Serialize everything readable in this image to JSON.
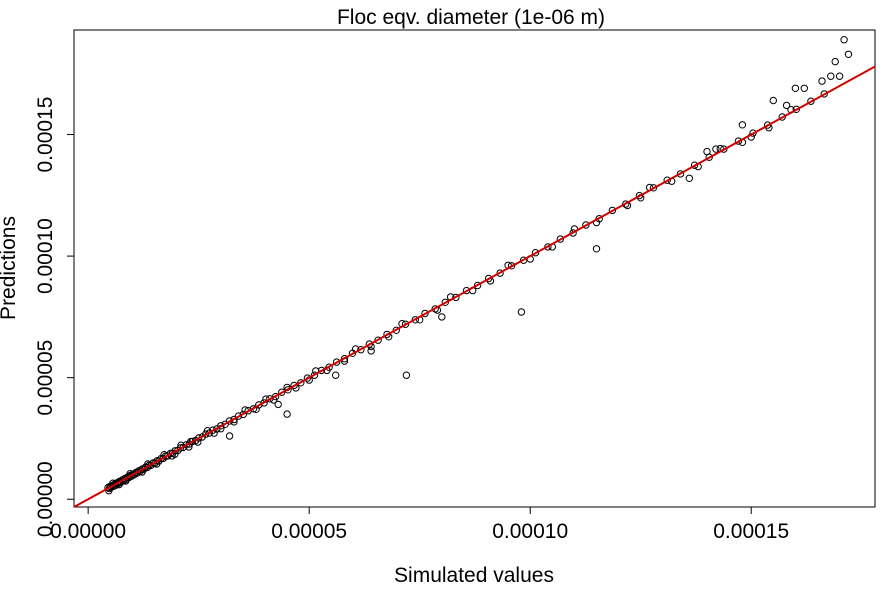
{
  "chart_data": {
    "type": "scatter",
    "title": "Floc eqv. diameter (1e-06 m)",
    "xlabel": "Simulated values",
    "ylabel": "Predictions",
    "xlim": [
      -3.2e-06,
      0.000178
    ],
    "ylim": [
      -3.2e-06,
      0.000193
    ],
    "xticks": [
      0,
      5e-05,
      0.0001,
      0.00015
    ],
    "xtick_labels": [
      "0.00000",
      "0.00005",
      "0.00010",
      "0.00015"
    ],
    "yticks": [
      0,
      5e-05,
      0.0001,
      0.00015
    ],
    "ytick_labels": [
      "0.00000",
      "0.00005",
      "0.00010",
      "0.00015"
    ],
    "grid": false,
    "reference_line": {
      "slope": 1,
      "intercept": 0,
      "color": "#d00000"
    },
    "series": [
      {
        "marker": "open-circle",
        "color": "#000000",
        "points": [
          [
            4.5e-06,
            4.8e-06
          ],
          [
            4.8e-06,
            4.4e-06
          ],
          [
            5e-06,
            5.3e-06
          ],
          [
            5.2e-06,
            4.9e-06
          ],
          [
            5.5e-06,
            5.7e-06
          ],
          [
            5.8e-06,
            5.3e-06
          ],
          [
            6e-06,
            6.2e-06
          ],
          [
            6.3e-06,
            5.8e-06
          ],
          [
            6.6e-06,
            6.8e-06
          ],
          [
            6.8e-06,
            6.5e-06
          ],
          [
            7.1e-06,
            7.3e-06
          ],
          [
            7.4e-06,
            7e-06
          ],
          [
            7.7e-06,
            7.9e-06
          ],
          [
            8e-06,
            7.6e-06
          ],
          [
            8.3e-06,
            8.5e-06
          ],
          [
            8.6e-06,
            8.2e-06
          ],
          [
            8.9e-06,
            9.1e-06
          ],
          [
            9.2e-06,
            8.9e-06
          ],
          [
            9.5e-06,
            9.7e-06
          ],
          [
            9.8e-06,
            9.5e-06
          ],
          [
            1.01e-05,
            1.03e-05
          ],
          [
            1.04e-05,
            1.01e-05
          ],
          [
            1.08e-05,
            1.1e-05
          ],
          [
            1.11e-05,
            1.08e-05
          ],
          [
            1.15e-05,
            1.17e-05
          ],
          [
            1.18e-05,
            1.15e-05
          ],
          [
            1.22e-05,
            1.24e-05
          ],
          [
            1.26e-05,
            1.23e-05
          ],
          [
            1.3e-05,
            1.32e-05
          ],
          [
            1.34e-05,
            1.31e-05
          ],
          [
            1.38e-05,
            1.4e-05
          ],
          [
            1.42e-05,
            1.39e-05
          ],
          [
            1.47e-05,
            1.49e-05
          ],
          [
            1.51e-05,
            1.48e-05
          ],
          [
            1.56e-05,
            1.58e-05
          ],
          [
            1.6e-05,
            1.57e-05
          ],
          [
            1.65e-05,
            1.67e-05
          ],
          [
            1.7e-05,
            1.68e-05
          ],
          [
            1.75e-05,
            1.77e-05
          ],
          [
            1.8e-05,
            1.78e-05
          ],
          [
            1.86e-05,
            1.88e-05
          ],
          [
            1.91e-05,
            1.89e-05
          ],
          [
            1.97e-05,
            1.99e-05
          ],
          [
            2.03e-05,
            2.01e-05
          ],
          [
            2.09e-05,
            2.11e-05
          ],
          [
            2.15e-05,
            2.13e-05
          ],
          [
            2.22e-05,
            2.24e-05
          ],
          [
            2.29e-05,
            2.27e-05
          ],
          [
            2.36e-05,
            2.38e-05
          ],
          [
            2.43e-05,
            2.41e-05
          ],
          [
            2.5e-05,
            2.52e-05
          ],
          [
            2.58e-05,
            2.56e-05
          ],
          [
            2.66e-05,
            2.68e-05
          ],
          [
            2.74e-05,
            2.72e-05
          ],
          [
            2.82e-05,
            2.84e-05
          ],
          [
            2.91e-05,
            2.89e-05
          ],
          [
            3e-05,
            3.02e-05
          ],
          [
            3.1e-05,
            3.08e-05
          ],
          [
            3.2e-05,
            3.22e-05
          ],
          [
            3.3e-05,
            3.28e-05
          ],
          [
            3.4e-05,
            3.42e-05
          ],
          [
            3.51e-05,
            3.49e-05
          ],
          [
            3.62e-05,
            3.64e-05
          ],
          [
            3.74e-05,
            3.72e-05
          ],
          [
            3.86e-05,
            3.88e-05
          ],
          [
            3.98e-05,
            3.96e-05
          ],
          [
            4.11e-05,
            4.13e-05
          ],
          [
            4.24e-05,
            4.22e-05
          ],
          [
            4.38e-05,
            4.4e-05
          ],
          [
            4.52e-05,
            4.5e-05
          ],
          [
            4.66e-05,
            4.68e-05
          ],
          [
            4.81e-05,
            4.79e-05
          ],
          [
            4.96e-05,
            4.98e-05
          ],
          [
            5.12e-05,
            5.1e-05
          ],
          [
            5.28e-05,
            5.3e-05
          ],
          [
            5.45e-05,
            5.43e-05
          ],
          [
            5.62e-05,
            5.64e-05
          ],
          [
            5.8e-05,
            5.78e-05
          ],
          [
            5.98e-05,
            6e-05
          ],
          [
            6.17e-05,
            6.15e-05
          ],
          [
            6.36e-05,
            6.38e-05
          ],
          [
            6.56e-05,
            6.54e-05
          ],
          [
            6.76e-05,
            6.78e-05
          ],
          [
            6.97e-05,
            6.95e-05
          ],
          [
            7.18e-05,
            7.2e-05
          ],
          [
            7.4e-05,
            7.38e-05
          ],
          [
            7.62e-05,
            7.64e-05
          ],
          [
            7.85e-05,
            7.83e-05
          ],
          [
            8.08e-05,
            8.1e-05
          ],
          [
            8.32e-05,
            8.3e-05
          ],
          [
            8.56e-05,
            8.58e-05
          ],
          [
            8.81e-05,
            8.79e-05
          ],
          [
            9.06e-05,
            9.08e-05
          ],
          [
            9.32e-05,
            9.3e-05
          ],
          [
            9.58e-05,
            9.6e-05
          ],
          [
            9.85e-05,
            9.83e-05
          ],
          [
            0.0001012,
            0.0001014
          ],
          [
            0.000104,
            0.0001038
          ],
          [
            0.0001068,
            0.000107
          ],
          [
            0.0001097,
            0.0001095
          ],
          [
            0.0001126,
            0.0001128
          ],
          [
            0.0001156,
            0.0001154
          ],
          [
            0.0001186,
            0.0001188
          ],
          [
            0.0001216,
            0.0001214
          ],
          [
            0.0001247,
            0.0001249
          ],
          [
            0.0001279,
            0.0001281
          ],
          [
            0.000131,
            0.0001312
          ],
          [
            0.000134,
            0.0001338
          ],
          [
            0.0001372,
            0.0001374
          ],
          [
            0.0001405,
            0.0001407
          ],
          [
            0.0001438,
            0.000144
          ],
          [
            0.0001471,
            0.0001473
          ],
          [
            0.0001504,
            0.0001506
          ],
          [
            0.0001537,
            0.0001539
          ],
          [
            0.000157,
            0.0001572
          ],
          [
            0.0001602,
            0.0001604
          ],
          [
            0.0001635,
            0.0001637
          ],
          [
            0.0001665,
            0.0001667
          ],
          [
            4.7e-06,
            3.5e-06
          ],
          [
            5.6e-06,
            6.6e-06
          ],
          [
            7e-06,
            6e-06
          ],
          [
            8.5e-06,
            7.5e-06
          ],
          [
            9.5e-06,
            1.05e-05
          ],
          [
            1.22e-05,
            1.12e-05
          ],
          [
            1.35e-05,
            1.45e-05
          ],
          [
            1.55e-05,
            1.45e-05
          ],
          [
            1.72e-05,
            1.83e-05
          ],
          [
            1.9e-05,
            1.78e-05
          ],
          [
            1.96e-05,
            1.85e-05
          ],
          [
            2.1e-05,
            2.22e-05
          ],
          [
            2.28e-05,
            2.15e-05
          ],
          [
            2.32e-05,
            2.37e-05
          ],
          [
            2.48e-05,
            2.35e-05
          ],
          [
            2.7e-05,
            2.82e-05
          ],
          [
            2.85e-05,
            2.72e-05
          ],
          [
            3e-05,
            2.9e-05
          ],
          [
            3.3e-05,
            3.18e-05
          ],
          [
            3.55e-05,
            3.67e-05
          ],
          [
            3.8e-05,
            3.7e-05
          ],
          [
            4.02e-05,
            4.12e-05
          ],
          [
            4.2e-05,
            4.08e-05
          ],
          [
            4.5e-05,
            4.6e-05
          ],
          [
            4.7e-05,
            4.58e-05
          ],
          [
            5e-05,
            4.9e-05
          ],
          [
            5.15e-05,
            5.28e-05
          ],
          [
            5.4e-05,
            5.3e-05
          ],
          [
            5.8e-05,
            5.68e-05
          ],
          [
            6.05e-05,
            6.18e-05
          ],
          [
            6.4e-05,
            6.28e-05
          ],
          [
            6.8e-05,
            6.68e-05
          ],
          [
            7.1e-05,
            7.22e-05
          ],
          [
            7.5e-05,
            7.38e-05
          ],
          [
            7.9e-05,
            7.78e-05
          ],
          [
            8.2e-05,
            8.32e-05
          ],
          [
            8.7e-05,
            8.58e-05
          ],
          [
            9.1e-05,
            8.98e-05
          ],
          [
            9.5e-05,
            9.62e-05
          ],
          [
            0.0001,
            9.88e-05
          ],
          [
            0.000105,
            0.0001038
          ],
          [
            0.00011,
            0.0001112
          ],
          [
            0.000115,
            0.0001138
          ],
          [
            0.000122,
            0.0001208
          ],
          [
            0.000127,
            0.0001282
          ],
          [
            0.000132,
            0.0001308
          ],
          [
            0.000138,
            0.0001368
          ],
          [
            0.000143,
            0.0001442
          ],
          [
            0.000148,
            0.0001468
          ],
          [
            0.000154,
            0.0001528
          ],
          [
            0.000159,
            0.0001602
          ],
          [
            3.2e-05,
            2.6e-05
          ],
          [
            4.3e-05,
            3.9e-05
          ],
          [
            4.5e-05,
            3.5e-05
          ],
          [
            5.6e-05,
            5.1e-05
          ],
          [
            6.4e-05,
            6.1e-05
          ],
          [
            7.2e-05,
            5.1e-05
          ],
          [
            8e-05,
            7.5e-05
          ],
          [
            9.8e-05,
            7.7e-05
          ],
          [
            0.000115,
            0.000103
          ],
          [
            0.000125,
            0.000124
          ],
          [
            0.000136,
            0.000132
          ],
          [
            0.00014,
            0.000143
          ],
          [
            0.000142,
            0.000144
          ],
          [
            0.000148,
            0.000154
          ],
          [
            0.00015,
            0.000149
          ],
          [
            0.000155,
            0.000164
          ],
          [
            0.000158,
            0.000162
          ],
          [
            0.000162,
            0.000169
          ],
          [
            0.000168,
            0.000174
          ],
          [
            0.00017,
            0.000174
          ],
          [
            0.000169,
            0.00018
          ],
          [
            0.000171,
            0.000189
          ],
          [
            0.000172,
            0.000183
          ],
          [
            0.000166,
            0.000172
          ],
          [
            0.00016,
            0.000169
          ]
        ]
      }
    ]
  }
}
